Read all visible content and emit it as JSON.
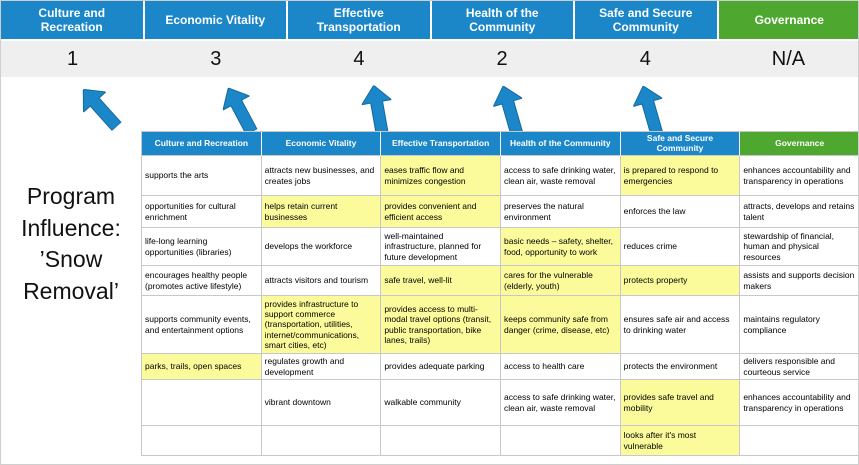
{
  "colors": {
    "header_blue": "#1b87c8",
    "header_green": "#4ea72e",
    "score_band_bg": "#efefef",
    "highlight_yellow": "#fbfb9c",
    "arrow_blue": "#1b87c8",
    "grid_border": "#c8c8c8"
  },
  "program_label": "Program Influence: ’Snow Removal’",
  "summary": {
    "columns": [
      {
        "label": "Culture and Recreation",
        "score": "1",
        "theme": "blue"
      },
      {
        "label": "Economic Vitality",
        "score": "3",
        "theme": "blue"
      },
      {
        "label": "Effective Transportation",
        "score": "4",
        "theme": "blue"
      },
      {
        "label": "Health of the Community",
        "score": "2",
        "theme": "blue"
      },
      {
        "label": "Safe and Secure Community",
        "score": "4",
        "theme": "blue"
      },
      {
        "label": "Governance",
        "score": "N/A",
        "theme": "green"
      }
    ]
  },
  "matrix": {
    "headers": [
      {
        "label": "Culture and Recreation",
        "theme": "blue"
      },
      {
        "label": "Economic Vitality",
        "theme": "blue"
      },
      {
        "label": "Effective Transportation",
        "theme": "blue"
      },
      {
        "label": "Health of the Community",
        "theme": "blue"
      },
      {
        "label": "Safe and Secure Community",
        "theme": "blue"
      },
      {
        "label": "Governance",
        "theme": "green"
      }
    ],
    "rows": [
      [
        {
          "text": "supports the arts",
          "highlight": false
        },
        {
          "text": "attracts new businesses, and creates jobs",
          "highlight": false
        },
        {
          "text": "eases traffic flow and minimizes congestion",
          "highlight": true
        },
        {
          "text": "access to safe drinking water, clean air, waste removal",
          "highlight": false
        },
        {
          "text": "is prepared to respond to emergencies",
          "highlight": true
        },
        {
          "text": "enhances accountability and transparency in operations",
          "highlight": false
        }
      ],
      [
        {
          "text": "opportunities for cultural enrichment",
          "highlight": false
        },
        {
          "text": "helps retain current businesses",
          "highlight": true
        },
        {
          "text": "provides convenient and efficient access",
          "highlight": true
        },
        {
          "text": "preserves the natural environment",
          "highlight": false
        },
        {
          "text": "enforces the law",
          "highlight": false
        },
        {
          "text": "attracts, develops and retains talent",
          "highlight": false
        }
      ],
      [
        {
          "text": "life-long learning opportunities (libraries)",
          "highlight": false
        },
        {
          "text": "develops the workforce",
          "highlight": false
        },
        {
          "text": "well-maintained infrastructure, planned for future development",
          "highlight": false
        },
        {
          "text": "basic needs – safety, shelter, food, opportunity to work",
          "highlight": true
        },
        {
          "text": "reduces crime",
          "highlight": false
        },
        {
          "text": "stewardship of financial, human and physical resources",
          "highlight": false
        }
      ],
      [
        {
          "text": "encourages healthy people (promotes active lifestyle)",
          "highlight": false
        },
        {
          "text": "attracts visitors and tourism",
          "highlight": false
        },
        {
          "text": "safe travel, well-lit",
          "highlight": true
        },
        {
          "text": "cares for the vulnerable (elderly, youth)",
          "highlight": true
        },
        {
          "text": "protects property",
          "highlight": true
        },
        {
          "text": "assists and supports decision makers",
          "highlight": false
        }
      ],
      [
        {
          "text": "supports community events, and entertainment options",
          "highlight": false
        },
        {
          "text": "provides infrastructure to support commerce (transportation, utilities, internet/communications, smart cities, etc)",
          "highlight": true
        },
        {
          "text": "provides access to multi-modal travel options (transit, public transportation, bike lanes, trails)",
          "highlight": true
        },
        {
          "text": "keeps community safe from danger (crime, disease, etc)",
          "highlight": true
        },
        {
          "text": "ensures safe air and access to drinking water",
          "highlight": false
        },
        {
          "text": "maintains regulatory compliance",
          "highlight": false
        }
      ],
      [
        {
          "text": "parks, trails, open spaces",
          "highlight": true
        },
        {
          "text": "regulates growth and development",
          "highlight": false
        },
        {
          "text": "provides adequate parking",
          "highlight": false
        },
        {
          "text": "access to health care",
          "highlight": false
        },
        {
          "text": "protects the environment",
          "highlight": false
        },
        {
          "text": "delivers responsible and courteous service",
          "highlight": false
        }
      ],
      [
        {
          "text": "",
          "highlight": false
        },
        {
          "text": "vibrant downtown",
          "highlight": false
        },
        {
          "text": "walkable community",
          "highlight": false
        },
        {
          "text": "access to safe drinking water, clean air, waste removal",
          "highlight": false
        },
        {
          "text": "provides safe travel and mobility",
          "highlight": true
        },
        {
          "text": "enhances accountability and transparency in operations",
          "highlight": false
        }
      ],
      [
        {
          "text": "",
          "highlight": false
        },
        {
          "text": "",
          "highlight": false
        },
        {
          "text": "",
          "highlight": false
        },
        {
          "text": "",
          "highlight": false
        },
        {
          "text": "looks after it's most vulnerable",
          "highlight": true
        },
        {
          "text": "",
          "highlight": false
        }
      ]
    ]
  }
}
